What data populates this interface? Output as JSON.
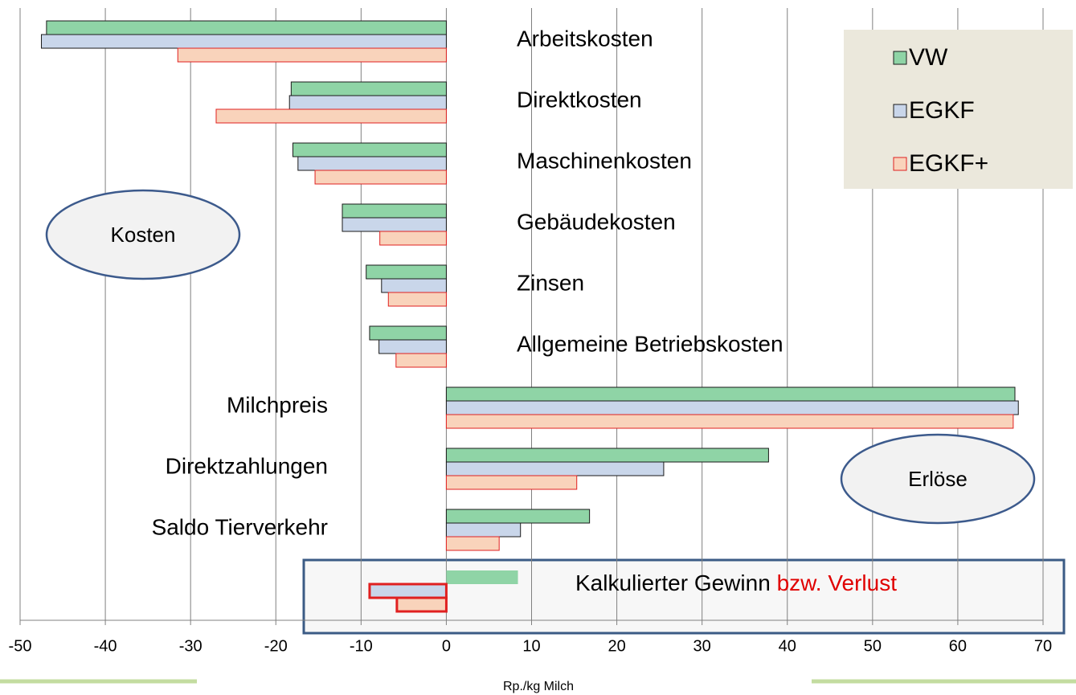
{
  "chart_data": {
    "type": "hbar",
    "xlabel": "Rp./kg Milch",
    "categories": [
      "Arbeitskosten",
      "Direktkosten",
      "Maschinenkosten",
      "Gebäudekosten",
      "Zinsen",
      "Allgemeine Betriebskosten",
      "Milchpreis",
      "Direktzahlungen",
      "Saldo Tierverkehr",
      null
    ],
    "series": [
      {
        "name": "VW",
        "color": "#8fd4a6",
        "edgecolor": "#1a1a1a",
        "values": [
          -46.9,
          -18.2,
          -18.0,
          -12.2,
          -9.4,
          -9.0,
          66.7,
          37.8,
          16.8,
          8.4
        ]
      },
      {
        "name": "EGKF",
        "color": "#c9d6ea",
        "edgecolor": "#1a1a1a",
        "values": [
          -47.5,
          -18.4,
          -17.4,
          -12.2,
          -7.6,
          -7.9,
          67.1,
          25.5,
          8.7,
          -9.0
        ]
      },
      {
        "name": "EGKF+",
        "color": "#f9d3bb",
        "edgecolor": "#e02020",
        "values": [
          -31.5,
          -27.0,
          -15.4,
          -7.8,
          -6.8,
          -5.9,
          66.5,
          15.3,
          6.2,
          -5.8
        ]
      }
    ],
    "xlim": [
      -50,
      70
    ],
    "xticks": [
      -50,
      -40,
      -30,
      -20,
      -10,
      0,
      10,
      20,
      30,
      40,
      50,
      60,
      70
    ],
    "grid": true,
    "legend": "upper right",
    "annotations": {
      "costs": "Kosten",
      "revenues": "Erlöse",
      "profit": "Kalkulierter Gewinn",
      "loss": "bzw. Verlust"
    }
  }
}
